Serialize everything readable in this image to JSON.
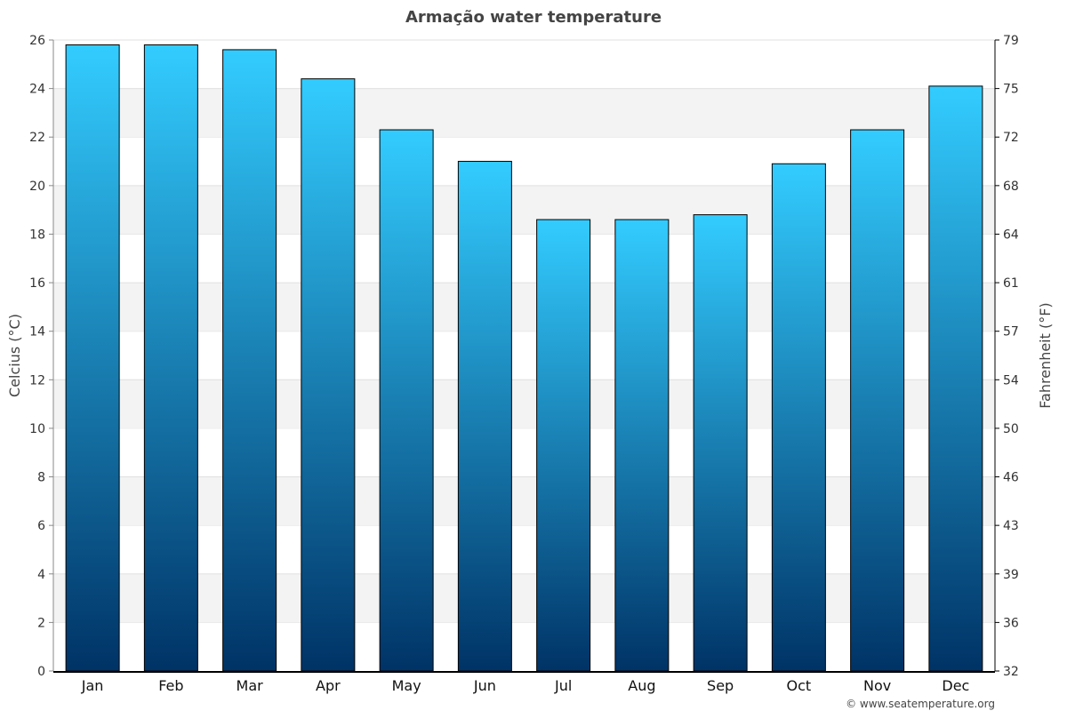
{
  "chart_data": {
    "type": "bar",
    "title": "Armação water temperature",
    "ylabel": "Celcius (°C)",
    "ylabel_right": "Fahrenheit (°F)",
    "categories": [
      "Jan",
      "Feb",
      "Mar",
      "Apr",
      "May",
      "Jun",
      "Jul",
      "Aug",
      "Sep",
      "Oct",
      "Nov",
      "Dec"
    ],
    "values": [
      25.8,
      25.8,
      25.6,
      24.4,
      22.3,
      21.0,
      18.6,
      18.6,
      18.8,
      20.9,
      22.3,
      24.1
    ],
    "ylim": [
      0,
      26
    ],
    "yticks": [
      0,
      2,
      4,
      6,
      8,
      10,
      12,
      14,
      16,
      18,
      20,
      22,
      24,
      26
    ],
    "yticks_right": [
      32,
      36,
      39,
      43,
      46,
      50,
      54,
      57,
      61,
      64,
      68,
      72,
      75,
      79
    ],
    "grid": true,
    "bar_color_top": "#33ccff",
    "bar_color_bottom": "#003366"
  },
  "credit": "© www.seatemperature.org"
}
